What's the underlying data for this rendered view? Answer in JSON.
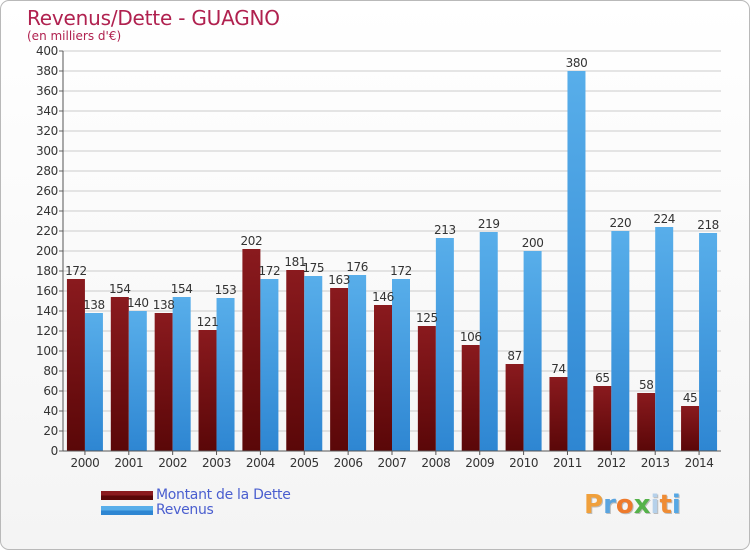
{
  "title": "Revenus/Dette - GUAGNO",
  "subtitle": "(en milliers d'€)",
  "brand": "Proxiti",
  "brand_colors": [
    "#f0a03c",
    "#5aa4df",
    "#ee7a2c",
    "#55b24a",
    "#b6d1ea",
    "#ef8c34",
    "#55a7e4"
  ],
  "colors": {
    "title": "#b0214f",
    "dette": "#7a1216",
    "revenus": "#3f9ae2",
    "legend_text": "#4a5ecf",
    "grid": "#cccccc"
  },
  "chart_data": {
    "type": "bar",
    "title": "Revenus/Dette - GUAGNO",
    "subtitle": "(en milliers d'€)",
    "categories": [
      "2000",
      "2001",
      "2002",
      "2003",
      "2004",
      "2005",
      "2006",
      "2007",
      "2008",
      "2009",
      "2010",
      "2011",
      "2012",
      "2013",
      "2014"
    ],
    "series": [
      {
        "name": "Montant de la Dette",
        "color": "#7a1216",
        "values": [
          172,
          154,
          138,
          121,
          202,
          181,
          163,
          146,
          125,
          106,
          87,
          74,
          65,
          58,
          45
        ]
      },
      {
        "name": "Revenus",
        "color": "#3f9ae2",
        "values": [
          138,
          140,
          154,
          153,
          172,
          175,
          176,
          172,
          213,
          219,
          200,
          380,
          220,
          224,
          218
        ]
      }
    ],
    "ylim": [
      0,
      400
    ],
    "ytick_step": 20,
    "yticks": [
      "0",
      "20",
      "40",
      "60",
      "80",
      "100",
      "120",
      "140",
      "160",
      "180",
      "200",
      "220",
      "240",
      "260",
      "280",
      "300",
      "320",
      "340",
      "360",
      "380",
      "400"
    ],
    "grid": true,
    "legend_position": "bottom-left"
  }
}
